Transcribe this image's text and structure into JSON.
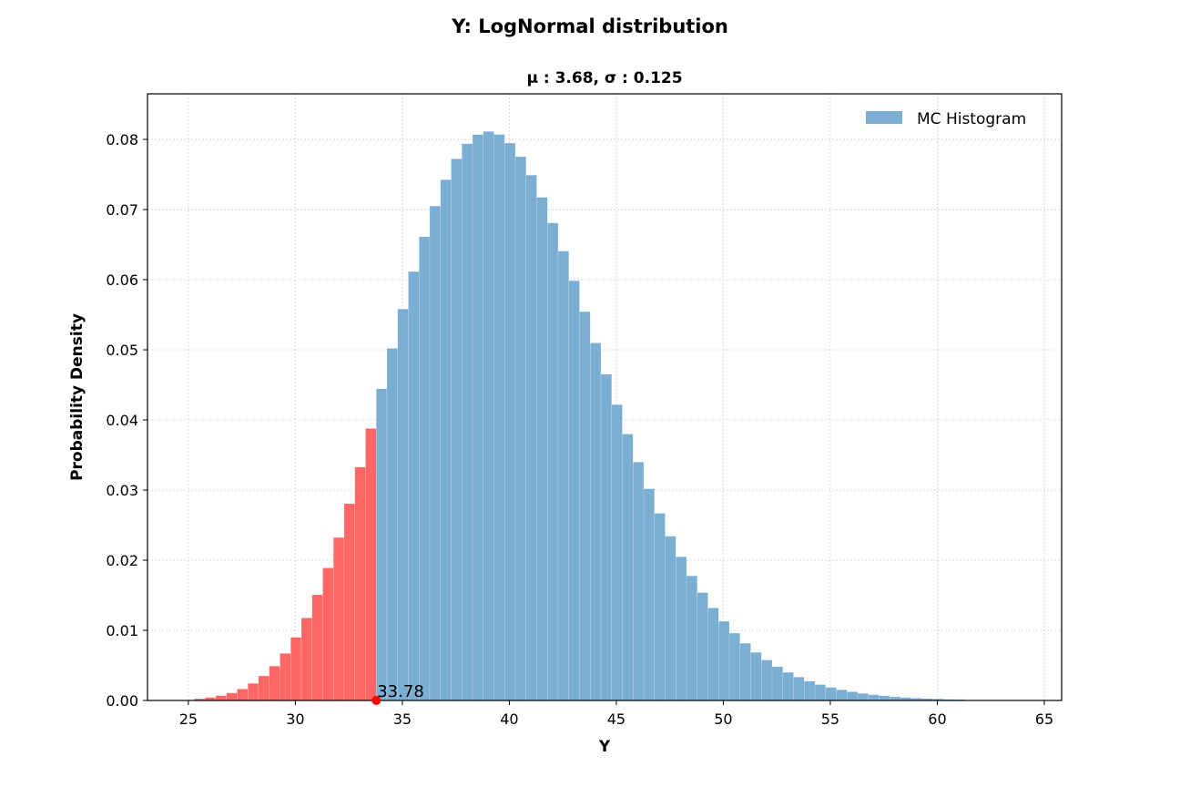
{
  "chart_data": {
    "type": "bar",
    "title": "Y: LogNormal distribution",
    "subtitle": "μ : 3.68, σ : 0.125",
    "xlabel": "Y",
    "ylabel": "Probability Density",
    "xlim": [
      23.09,
      65.81
    ],
    "ylim": [
      0,
      0.0865
    ],
    "xticks": [
      "25",
      "30",
      "35",
      "40",
      "45",
      "50",
      "55",
      "60",
      "65"
    ],
    "yticks": [
      "0.00",
      "0.01",
      "0.02",
      "0.03",
      "0.04",
      "0.05",
      "0.06",
      "0.07",
      "0.08"
    ],
    "grid": true,
    "legend": {
      "position": "top-right",
      "entries": [
        "MC Histogram"
      ]
    },
    "bin_start": 25.28,
    "bin_width": 0.5,
    "values": [
      0.00025,
      0.00043,
      0.00069,
      0.00108,
      0.00164,
      0.00243,
      0.0035,
      0.0049,
      0.00672,
      0.009,
      0.01177,
      0.01507,
      0.0189,
      0.02324,
      0.02806,
      0.03328,
      0.03878,
      0.04445,
      0.0502,
      0.05582,
      0.06115,
      0.06611,
      0.0705,
      0.07425,
      0.07723,
      0.07939,
      0.08069,
      0.08113,
      0.08071,
      0.07948,
      0.07753,
      0.07491,
      0.07174,
      0.06809,
      0.06408,
      0.05985,
      0.05543,
      0.05098,
      0.04651,
      0.04218,
      0.03799,
      0.03399,
      0.03019,
      0.02669,
      0.02343,
      0.02049,
      0.01777,
      0.01538,
      0.0132,
      0.01129,
      0.0096,
      0.00815,
      0.00686,
      0.00577,
      0.00482,
      0.00401,
      0.00333,
      0.00275,
      0.00227,
      0.00186,
      0.00152,
      0.00124,
      0.00101,
      0.00081,
      0.00066,
      0.00053,
      0.00043,
      0.00034,
      0.00027,
      0.00022,
      0.00017,
      0.00014
    ],
    "threshold": {
      "value": 33.78,
      "label": "33.78"
    },
    "colors": {
      "histogram": "#7aaed3",
      "tail": "#ff6666",
      "marker": "#ff0000"
    }
  }
}
